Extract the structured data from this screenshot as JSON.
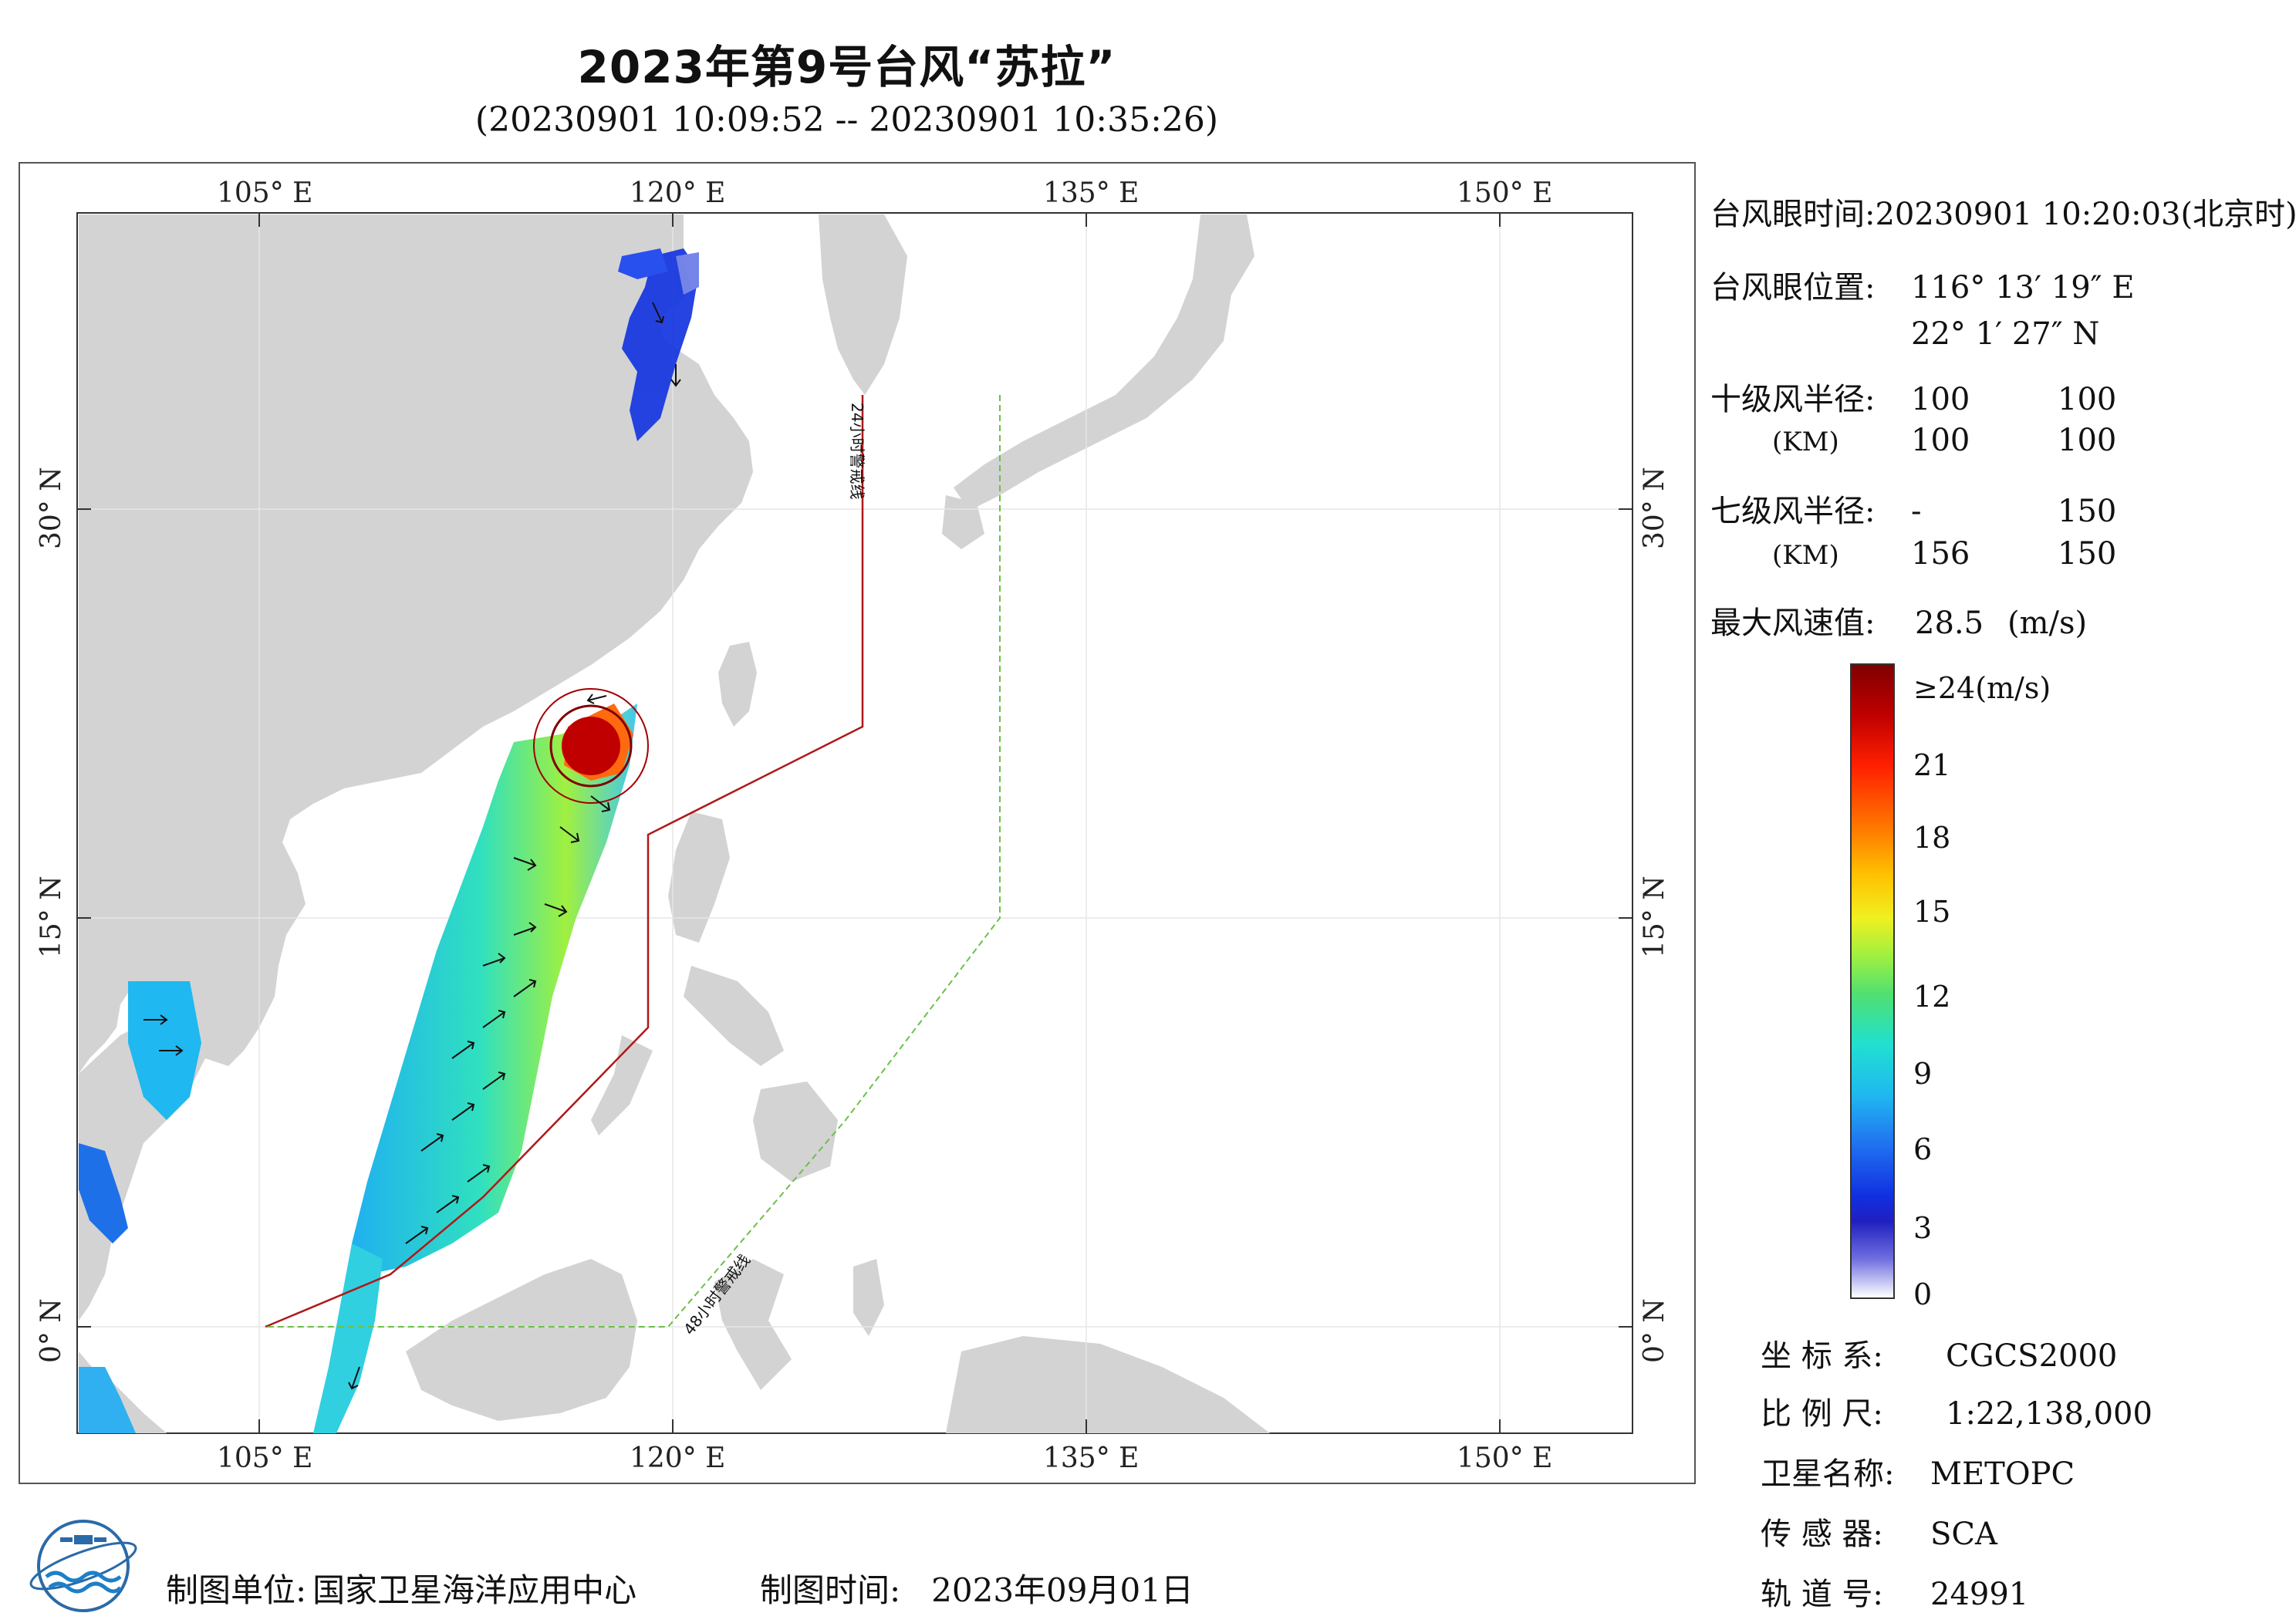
{
  "header": {
    "title": "2023年第9号台风“苏拉”",
    "subtitle": "(20230901 10:09:52 -- 20230901 10:35:26)"
  },
  "map": {
    "lon_ticks": [
      "105° E",
      "120° E",
      "135° E",
      "150° E"
    ],
    "lat_ticks": [
      "30° N",
      "15° N",
      "0° N"
    ],
    "warning_line_24h": "24小时警戒线",
    "warning_line_48h": "48小时警戒线",
    "colors": {
      "land": "#d3d3d3",
      "sea": "#ffffff",
      "line_24h": "#b01818",
      "line_48h": "#6cc04a"
    }
  },
  "info": {
    "eye_time_label": "台风眼时间:",
    "eye_time_value": "20230901 10:20:03(北京时)",
    "eye_pos_label": "台风眼位置:",
    "eye_lon": "116° 13′ 19″ E",
    "eye_lat": "22° 1′ 27″ N",
    "r10_label": "十级风半径:",
    "r10_unit": "(KM)",
    "r10_values": [
      "100",
      "100",
      "100",
      "100"
    ],
    "r7_label": "七级风半径:",
    "r7_unit": "(KM)",
    "r7_values": [
      "-",
      "150",
      "156",
      "150"
    ],
    "max_wind_label": "最大风速值:",
    "max_wind_value": "28.5",
    "max_wind_unit": "(m/s)"
  },
  "colorbar": {
    "labels": [
      "≥24(m/s)",
      "21",
      "18",
      "15",
      "12",
      "9",
      "6",
      "3",
      "0"
    ],
    "stops": [
      "#800000",
      "#d00000",
      "#ff4000",
      "#ff9000",
      "#ffe000",
      "#c0f020",
      "#60e060",
      "#20e0c0",
      "#20c0f0",
      "#2080f0",
      "#1040e0",
      "#0000c0",
      "#8080e0",
      "#ffffff"
    ]
  },
  "meta": {
    "coord_label": "坐 标 系:",
    "coord_value": "CGCS2000",
    "scale_label": "比 例 尺:",
    "scale_value": "1:22,138,000",
    "satellite_label": "卫星名称:",
    "satellite_value": "METOPC",
    "sensor_label": "传 感 器:",
    "sensor_value": "SCA",
    "orbit_label": "轨 道 号:",
    "orbit_value": "24991"
  },
  "footer": {
    "unit_label": "制图单位:",
    "unit_value": "国家卫星海洋应用中心",
    "time_label": "制图时间:",
    "time_value": "2023年09月01日"
  }
}
